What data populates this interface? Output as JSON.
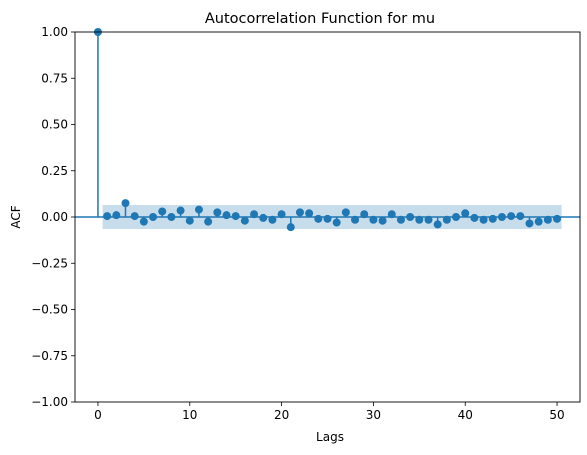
{
  "chart_data": {
    "type": "scatter",
    "title": "Autocorrelation Function for mu",
    "xlabel": "Lags",
    "ylabel": "ACF",
    "xlim": [
      -2.5,
      52.5
    ],
    "ylim": [
      -1.0,
      1.0
    ],
    "xticks": [
      0,
      10,
      20,
      30,
      40,
      50
    ],
    "yticks": [
      -1.0,
      -0.75,
      -0.5,
      -0.25,
      0.0,
      0.25,
      0.5,
      0.75,
      1.0
    ],
    "ytick_labels": [
      "−1.00",
      "−0.75",
      "−0.50",
      "−0.25",
      "0.00",
      "0.25",
      "0.50",
      "0.75",
      "1.00"
    ],
    "confidence_band": {
      "from_lag": 0.5,
      "to_lag": 50.5,
      "lower": -0.065,
      "upper": 0.065
    },
    "lags": [
      0,
      1,
      2,
      3,
      4,
      5,
      6,
      7,
      8,
      9,
      10,
      11,
      12,
      13,
      14,
      15,
      16,
      17,
      18,
      19,
      20,
      21,
      22,
      23,
      24,
      25,
      26,
      27,
      28,
      29,
      30,
      31,
      32,
      33,
      34,
      35,
      36,
      37,
      38,
      39,
      40,
      41,
      42,
      43,
      44,
      45,
      46,
      47,
      48,
      49,
      50
    ],
    "values": [
      1.0,
      0.005,
      0.01,
      0.075,
      0.005,
      -0.025,
      0.0,
      0.03,
      0.0,
      0.035,
      -0.02,
      0.04,
      -0.025,
      0.025,
      0.01,
      0.005,
      -0.02,
      0.015,
      -0.005,
      -0.015,
      0.015,
      -0.055,
      0.025,
      0.02,
      -0.01,
      -0.01,
      -0.03,
      0.025,
      -0.015,
      0.015,
      -0.015,
      -0.02,
      0.015,
      -0.015,
      0.0,
      -0.015,
      -0.015,
      -0.04,
      -0.015,
      0.0,
      0.02,
      -0.005,
      -0.015,
      -0.01,
      0.0,
      0.005,
      0.005,
      -0.035,
      -0.025,
      -0.015,
      -0.01
    ],
    "colors": {
      "marker": "#1f77b4",
      "band": "#1f77b4",
      "zero_line": "#1f77b4"
    },
    "grid": false,
    "legend": "none"
  }
}
